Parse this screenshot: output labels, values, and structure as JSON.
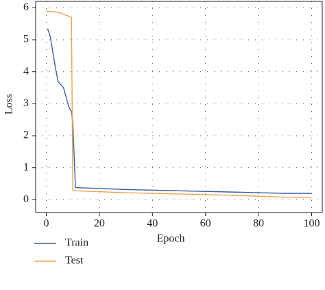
{
  "chart_data": {
    "type": "line",
    "xlabel": "Epoch",
    "ylabel": "Loss",
    "xlim": [
      -4,
      104
    ],
    "ylim": [
      -0.4,
      6.2
    ],
    "xticks": [
      0,
      20,
      40,
      60,
      80,
      100
    ],
    "yticks": [
      0,
      1,
      2,
      3,
      4,
      5,
      6
    ],
    "grid": true,
    "legend": "below",
    "series": [
      {
        "name": "Train",
        "color": "#3b5ea6",
        "x": [
          0.5,
          1.5,
          2.5,
          3.5,
          4.5,
          5.5,
          6.5,
          7.5,
          8.5,
          9.5,
          10,
          11,
          30,
          50,
          70,
          90,
          100
        ],
        "values": [
          5.35,
          5.1,
          4.6,
          4.1,
          3.68,
          3.6,
          3.5,
          3.2,
          2.9,
          2.75,
          2.4,
          0.38,
          0.32,
          0.28,
          0.24,
          0.2,
          0.2
        ]
      },
      {
        "name": "Test",
        "color": "#f0a24e",
        "x": [
          0,
          5,
          9.5,
          10,
          11,
          30,
          50,
          70,
          90,
          100
        ],
        "values": [
          5.9,
          5.85,
          5.7,
          0.3,
          0.28,
          0.22,
          0.18,
          0.14,
          0.08,
          0.07
        ]
      }
    ]
  }
}
